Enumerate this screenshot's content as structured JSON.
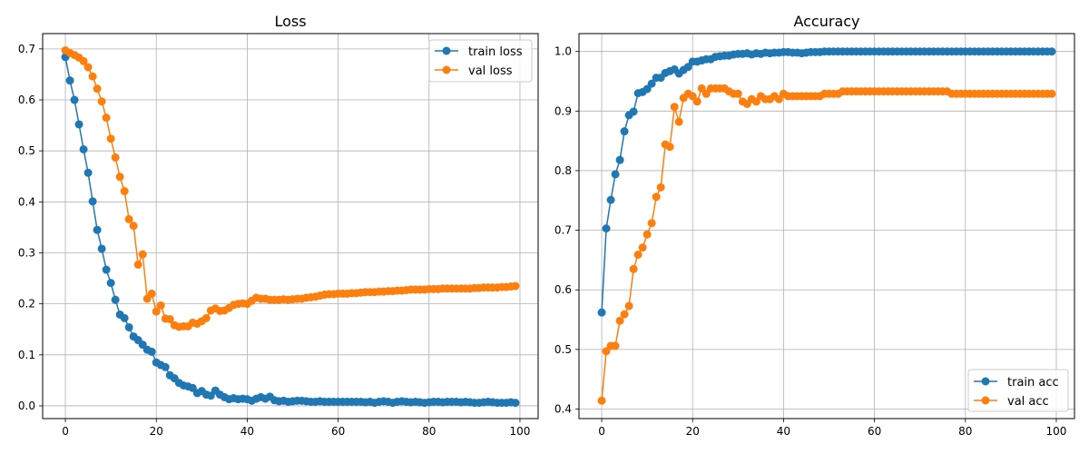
{
  "chart_data": [
    {
      "type": "line",
      "title": "Loss",
      "xlabel": "",
      "ylabel": "",
      "xlim": [
        -5,
        104
      ],
      "ylim": [
        -0.025,
        0.73
      ],
      "xticks": [
        0,
        20,
        40,
        60,
        80,
        100
      ],
      "xtick_labels": [
        "0",
        "20",
        "40",
        "60",
        "80",
        "100"
      ],
      "yticks": [
        0.0,
        0.1,
        0.2,
        0.3,
        0.4,
        0.5,
        0.6,
        0.7
      ],
      "ytick_labels": [
        "0.0",
        "0.1",
        "0.2",
        "0.3",
        "0.4",
        "0.5",
        "0.6",
        "0.7"
      ],
      "grid": true,
      "legend_position": "top-right",
      "series": [
        {
          "name": "train loss",
          "color": "#1f77b4",
          "x": [
            0,
            1,
            2,
            3,
            4,
            5,
            6,
            7,
            8,
            9,
            10,
            11,
            12,
            13,
            14,
            15,
            16,
            17,
            18,
            19,
            20,
            21,
            22,
            23,
            24,
            25,
            26,
            27,
            28,
            29,
            30,
            31,
            32,
            33,
            34,
            35,
            36,
            37,
            38,
            39,
            40,
            41,
            42,
            43,
            44,
            45,
            46,
            47,
            48,
            49,
            50,
            51,
            52,
            53,
            54,
            55,
            56,
            57,
            58,
            59,
            60,
            61,
            62,
            63,
            64,
            65,
            66,
            67,
            68,
            69,
            70,
            71,
            72,
            73,
            74,
            75,
            76,
            77,
            78,
            79,
            80,
            81,
            82,
            83,
            84,
            85,
            86,
            87,
            88,
            89,
            90,
            91,
            92,
            93,
            94,
            95,
            96,
            97,
            98,
            99
          ],
          "values": [
            0.684,
            0.638,
            0.6,
            0.552,
            0.503,
            0.457,
            0.401,
            0.345,
            0.308,
            0.267,
            0.241,
            0.208,
            0.179,
            0.172,
            0.154,
            0.136,
            0.129,
            0.12,
            0.11,
            0.106,
            0.085,
            0.08,
            0.076,
            0.06,
            0.054,
            0.045,
            0.04,
            0.038,
            0.035,
            0.025,
            0.029,
            0.022,
            0.02,
            0.03,
            0.022,
            0.017,
            0.013,
            0.015,
            0.013,
            0.014,
            0.013,
            0.01,
            0.014,
            0.017,
            0.014,
            0.018,
            0.011,
            0.009,
            0.01,
            0.008,
            0.009,
            0.01,
            0.01,
            0.009,
            0.008,
            0.008,
            0.009,
            0.008,
            0.008,
            0.008,
            0.008,
            0.008,
            0.008,
            0.008,
            0.008,
            0.008,
            0.007,
            0.008,
            0.006,
            0.008,
            0.009,
            0.008,
            0.006,
            0.008,
            0.009,
            0.008,
            0.007,
            0.008,
            0.007,
            0.006,
            0.007,
            0.008,
            0.008,
            0.007,
            0.008,
            0.008,
            0.008,
            0.007,
            0.008,
            0.007,
            0.006,
            0.006,
            0.007,
            0.008,
            0.007,
            0.006,
            0.006,
            0.006,
            0.007,
            0.006
          ]
        },
        {
          "name": "val loss",
          "color": "#ff7f0e",
          "x": [
            0,
            1,
            2,
            3,
            4,
            5,
            6,
            7,
            8,
            9,
            10,
            11,
            12,
            13,
            14,
            15,
            16,
            17,
            18,
            19,
            20,
            21,
            22,
            23,
            24,
            25,
            26,
            27,
            28,
            29,
            30,
            31,
            32,
            33,
            34,
            35,
            36,
            37,
            38,
            39,
            40,
            41,
            42,
            43,
            44,
            45,
            46,
            47,
            48,
            49,
            50,
            51,
            52,
            53,
            54,
            55,
            56,
            57,
            58,
            59,
            60,
            61,
            62,
            63,
            64,
            65,
            66,
            67,
            68,
            69,
            70,
            71,
            72,
            73,
            74,
            75,
            76,
            77,
            78,
            79,
            80,
            81,
            82,
            83,
            84,
            85,
            86,
            87,
            88,
            89,
            90,
            91,
            92,
            93,
            94,
            95,
            96,
            97,
            98,
            99
          ],
          "values": [
            0.697,
            0.692,
            0.688,
            0.683,
            0.676,
            0.664,
            0.646,
            0.622,
            0.597,
            0.565,
            0.524,
            0.487,
            0.449,
            0.421,
            0.366,
            0.353,
            0.277,
            0.297,
            0.21,
            0.22,
            0.185,
            0.197,
            0.171,
            0.17,
            0.158,
            0.155,
            0.156,
            0.156,
            0.163,
            0.161,
            0.166,
            0.172,
            0.187,
            0.191,
            0.186,
            0.187,
            0.192,
            0.198,
            0.2,
            0.201,
            0.2,
            0.206,
            0.212,
            0.21,
            0.21,
            0.208,
            0.208,
            0.208,
            0.209,
            0.208,
            0.209,
            0.21,
            0.21,
            0.212,
            0.213,
            0.214,
            0.216,
            0.218,
            0.219,
            0.219,
            0.22,
            0.22,
            0.22,
            0.221,
            0.221,
            0.222,
            0.223,
            0.223,
            0.223,
            0.224,
            0.224,
            0.225,
            0.225,
            0.226,
            0.226,
            0.227,
            0.228,
            0.228,
            0.228,
            0.228,
            0.229,
            0.229,
            0.229,
            0.23,
            0.23,
            0.23,
            0.23,
            0.23,
            0.23,
            0.23,
            0.231,
            0.231,
            0.232,
            0.232,
            0.232,
            0.232,
            0.233,
            0.233,
            0.234,
            0.235
          ]
        }
      ]
    },
    {
      "type": "line",
      "title": "Accuracy",
      "xlabel": "",
      "ylabel": "",
      "xlim": [
        -5,
        104
      ],
      "ylim": [
        0.384,
        1.03
      ],
      "xticks": [
        0,
        20,
        40,
        60,
        80,
        100
      ],
      "xtick_labels": [
        "0",
        "20",
        "40",
        "60",
        "80",
        "100"
      ],
      "yticks": [
        0.4,
        0.5,
        0.6,
        0.7,
        0.8,
        0.9,
        1.0
      ],
      "ytick_labels": [
        "0.4",
        "0.5",
        "0.6",
        "0.7",
        "0.8",
        "0.9",
        "1.0"
      ],
      "grid": true,
      "legend_position": "bottom-right",
      "series": [
        {
          "name": "train acc",
          "color": "#1f77b4",
          "x": [
            0,
            1,
            2,
            3,
            4,
            5,
            6,
            7,
            8,
            9,
            10,
            11,
            12,
            13,
            14,
            15,
            16,
            17,
            18,
            19,
            20,
            21,
            22,
            23,
            24,
            25,
            26,
            27,
            28,
            29,
            30,
            31,
            32,
            33,
            34,
            35,
            36,
            37,
            38,
            39,
            40,
            41,
            42,
            43,
            44,
            45,
            46,
            47,
            48,
            49,
            50,
            51,
            52,
            53,
            54,
            55,
            56,
            57,
            58,
            59,
            60,
            61,
            62,
            63,
            64,
            65,
            66,
            67,
            68,
            69,
            70,
            71,
            72,
            73,
            74,
            75,
            76,
            77,
            78,
            79,
            80,
            81,
            82,
            83,
            84,
            85,
            86,
            87,
            88,
            89,
            90,
            91,
            92,
            93,
            94,
            95,
            96,
            97,
            98,
            99
          ],
          "values": [
            0.562,
            0.703,
            0.751,
            0.794,
            0.818,
            0.866,
            0.893,
            0.899,
            0.93,
            0.932,
            0.937,
            0.946,
            0.956,
            0.956,
            0.964,
            0.967,
            0.97,
            0.963,
            0.969,
            0.974,
            0.983,
            0.983,
            0.985,
            0.987,
            0.987,
            0.991,
            0.992,
            0.993,
            0.993,
            0.995,
            0.996,
            0.996,
            0.997,
            0.995,
            0.997,
            0.996,
            0.998,
            0.997,
            0.998,
            0.998,
            0.999,
            0.999,
            0.998,
            0.998,
            0.997,
            0.998,
            0.999,
            0.999,
            0.999,
            1.0,
            1.0,
            1.0,
            1.0,
            1.0,
            1.0,
            1.0,
            1.0,
            1.0,
            1.0,
            1.0,
            1.0,
            1.0,
            1.0,
            1.0,
            1.0,
            1.0,
            1.0,
            1.0,
            1.0,
            1.0,
            1.0,
            1.0,
            1.0,
            1.0,
            1.0,
            1.0,
            1.0,
            1.0,
            1.0,
            1.0,
            1.0,
            1.0,
            1.0,
            1.0,
            1.0,
            1.0,
            1.0,
            1.0,
            1.0,
            1.0,
            1.0,
            1.0,
            1.0,
            1.0,
            1.0,
            1.0,
            1.0,
            1.0,
            1.0,
            1.0
          ]
        },
        {
          "name": "val acc",
          "color": "#ff7f0e",
          "x": [
            0,
            1,
            2,
            3,
            4,
            5,
            6,
            7,
            8,
            9,
            10,
            11,
            12,
            13,
            14,
            15,
            16,
            17,
            18,
            19,
            20,
            21,
            22,
            23,
            24,
            25,
            26,
            27,
            28,
            29,
            30,
            31,
            32,
            33,
            34,
            35,
            36,
            37,
            38,
            39,
            40,
            41,
            42,
            43,
            44,
            45,
            46,
            47,
            48,
            49,
            50,
            51,
            52,
            53,
            54,
            55,
            56,
            57,
            58,
            59,
            60,
            61,
            62,
            63,
            64,
            65,
            66,
            67,
            68,
            69,
            70,
            71,
            72,
            73,
            74,
            75,
            76,
            77,
            78,
            79,
            80,
            81,
            82,
            83,
            84,
            85,
            86,
            87,
            88,
            89,
            90,
            91,
            92,
            93,
            94,
            95,
            96,
            97,
            98,
            99
          ],
          "values": [
            0.414,
            0.497,
            0.506,
            0.506,
            0.548,
            0.559,
            0.573,
            0.635,
            0.659,
            0.671,
            0.693,
            0.712,
            0.756,
            0.772,
            0.844,
            0.84,
            0.907,
            0.882,
            0.922,
            0.929,
            0.925,
            0.916,
            0.938,
            0.929,
            0.938,
            0.938,
            0.938,
            0.938,
            0.933,
            0.929,
            0.929,
            0.916,
            0.912,
            0.92,
            0.916,
            0.925,
            0.92,
            0.92,
            0.925,
            0.92,
            0.929,
            0.925,
            0.925,
            0.925,
            0.925,
            0.925,
            0.925,
            0.925,
            0.925,
            0.929,
            0.929,
            0.929,
            0.929,
            0.933,
            0.933,
            0.933,
            0.933,
            0.933,
            0.933,
            0.933,
            0.933,
            0.933,
            0.933,
            0.933,
            0.933,
            0.933,
            0.933,
            0.933,
            0.933,
            0.933,
            0.933,
            0.933,
            0.933,
            0.933,
            0.933,
            0.933,
            0.933,
            0.929,
            0.929,
            0.929,
            0.929,
            0.929,
            0.929,
            0.929,
            0.929,
            0.929,
            0.929,
            0.929,
            0.929,
            0.929,
            0.929,
            0.929,
            0.929,
            0.929,
            0.929,
            0.929,
            0.929,
            0.929,
            0.929,
            0.929
          ]
        }
      ]
    }
  ]
}
